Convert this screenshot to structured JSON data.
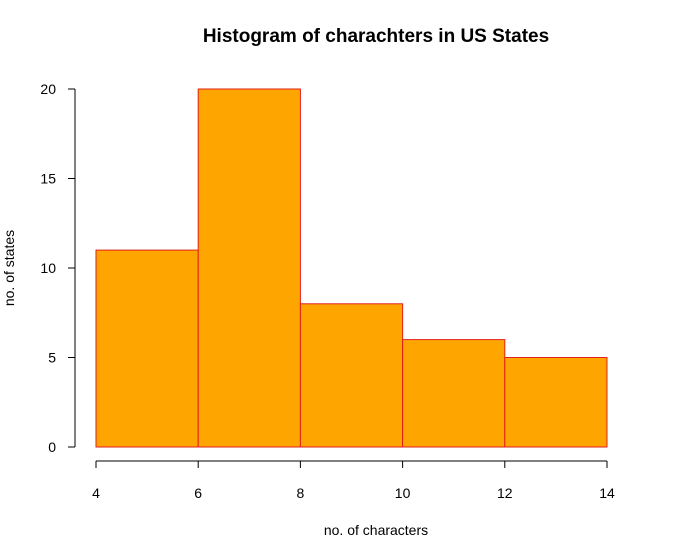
{
  "chart_data": {
    "type": "bar",
    "subtype": "histogram",
    "title": "Histogram of charachters in US States",
    "xlabel": "no. of characters",
    "ylabel": "no. of states",
    "bins": [
      {
        "start": 4,
        "end": 6,
        "count": 11
      },
      {
        "start": 6,
        "end": 8,
        "count": 20
      },
      {
        "start": 8,
        "end": 10,
        "count": 8
      },
      {
        "start": 10,
        "end": 12,
        "count": 6
      },
      {
        "start": 12,
        "end": 14,
        "count": 5
      }
    ],
    "xlim": [
      4,
      14
    ],
    "ylim": [
      0,
      20
    ],
    "x_ticks": [
      4,
      6,
      8,
      10,
      12,
      14
    ],
    "y_ticks": [
      0,
      5,
      10,
      15,
      20
    ],
    "bar_fill": "#FFA500",
    "bar_border": "#E0201B",
    "grid": false,
    "legend": "none"
  }
}
